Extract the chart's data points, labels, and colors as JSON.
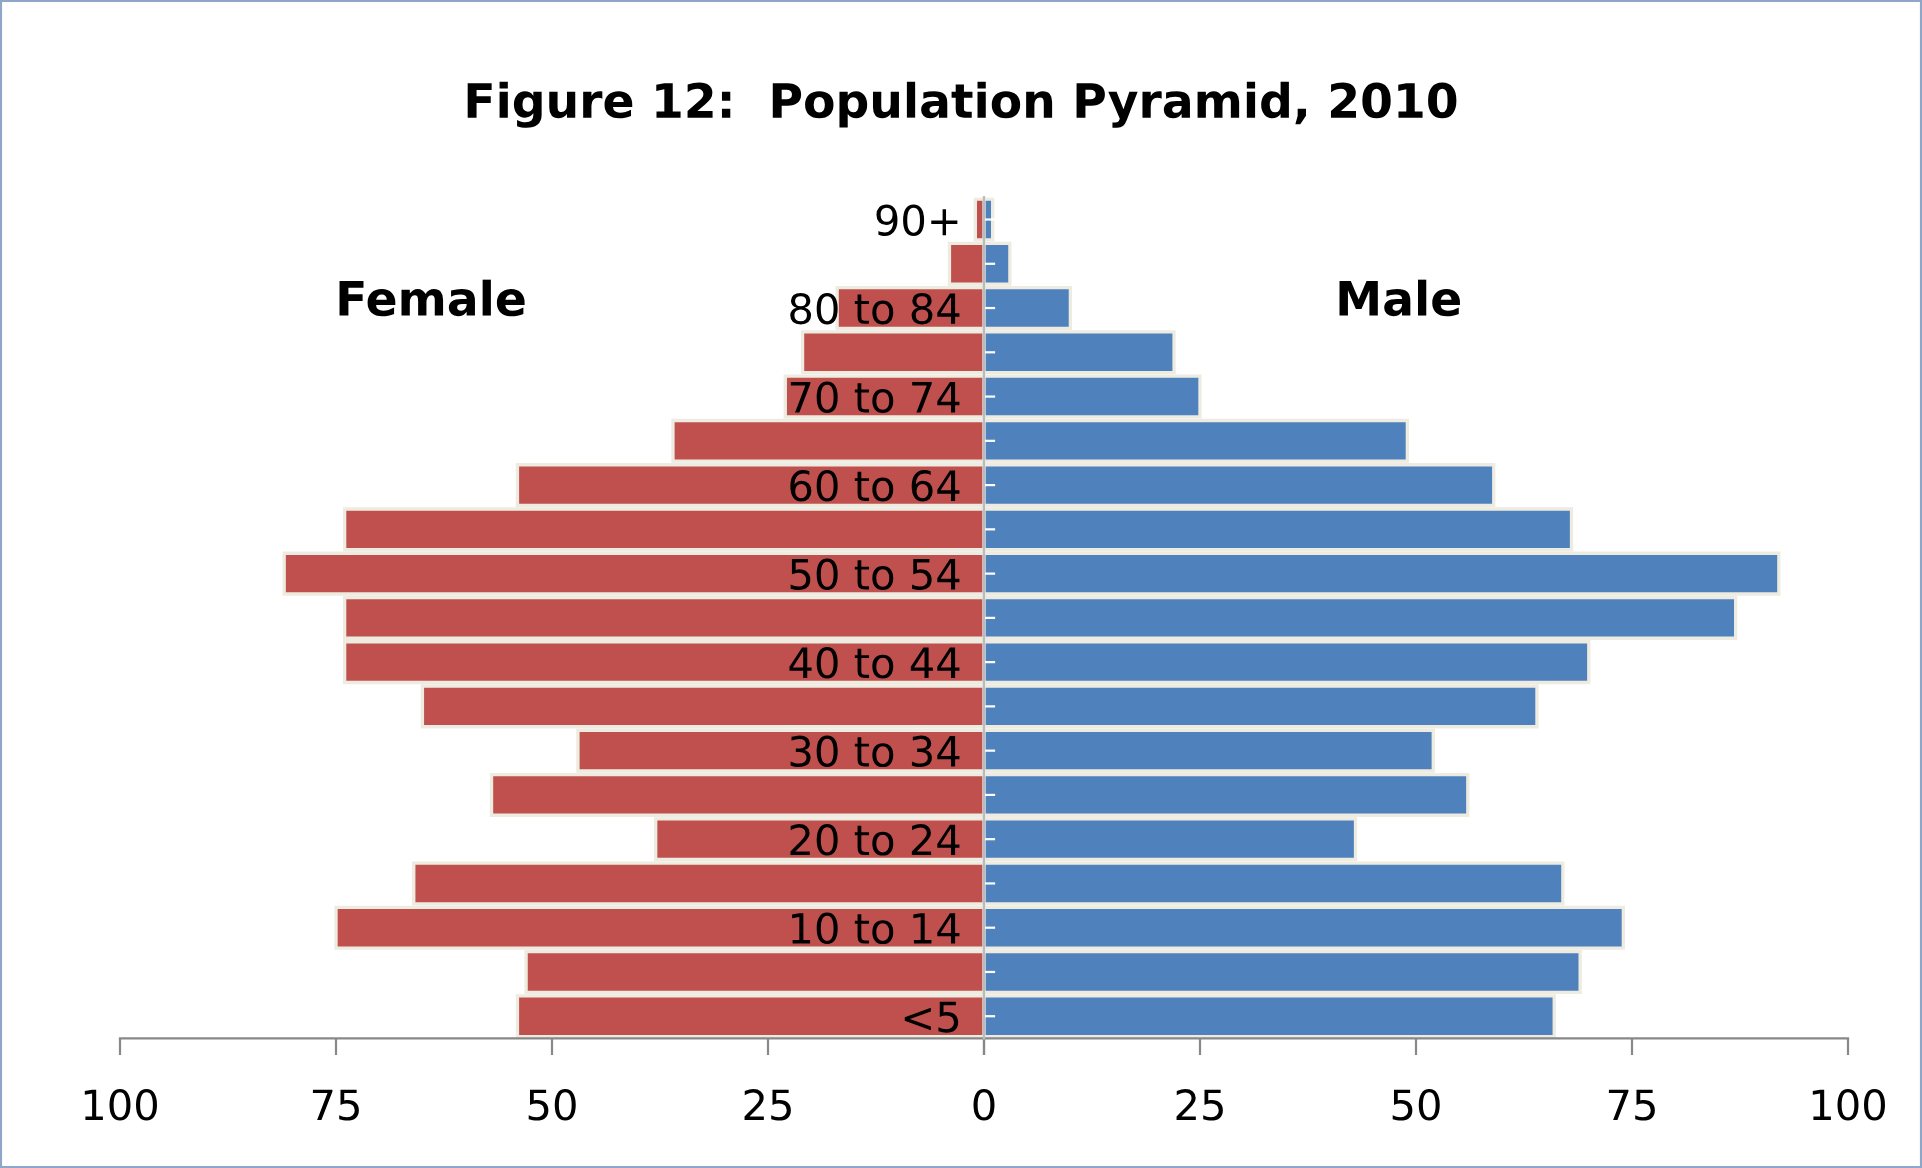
{
  "chart_data": [
    {
      "type": "bar",
      "orientation": "horizontal",
      "title": "Figure 12:  Population Pyramid, 2010",
      "categories": [
        "90+",
        null,
        "80 to 84",
        null,
        "70 to 74",
        null,
        "60 to 64",
        null,
        "50 to 54",
        null,
        "40 to 44",
        null,
        "30 to 34",
        null,
        "20 to 24",
        null,
        "10 to 14",
        null,
        "<5"
      ],
      "series": [
        {
          "name": "Female",
          "color": "#c0504d",
          "values": [
            1,
            4,
            17,
            21,
            23,
            36,
            54,
            74,
            81,
            74,
            74,
            65,
            47,
            57,
            38,
            66,
            75,
            53,
            54
          ]
        }
      ],
      "xlim": [
        100,
        0
      ],
      "xticks": [
        100,
        75,
        50,
        25,
        {
          "value": 0,
          "label": null
        }
      ],
      "grid": false,
      "legend": false
    },
    {
      "type": "bar",
      "orientation": "horizontal",
      "categories": [
        null,
        null,
        null,
        null,
        null,
        null,
        null,
        null,
        null,
        null,
        null,
        null,
        null,
        null,
        null,
        null,
        null,
        null,
        null
      ],
      "series": [
        {
          "name": "Male",
          "color": "#4f81bd",
          "values": [
            1,
            3,
            10,
            22,
            25,
            49,
            59,
            68,
            92,
            87,
            70,
            64,
            52,
            56,
            43,
            67,
            74,
            69,
            66
          ]
        }
      ],
      "xlim": [
        0,
        100
      ],
      "xticks": [
        0,
        25,
        50,
        75,
        100
      ],
      "grid": false,
      "legend": false
    }
  ]
}
